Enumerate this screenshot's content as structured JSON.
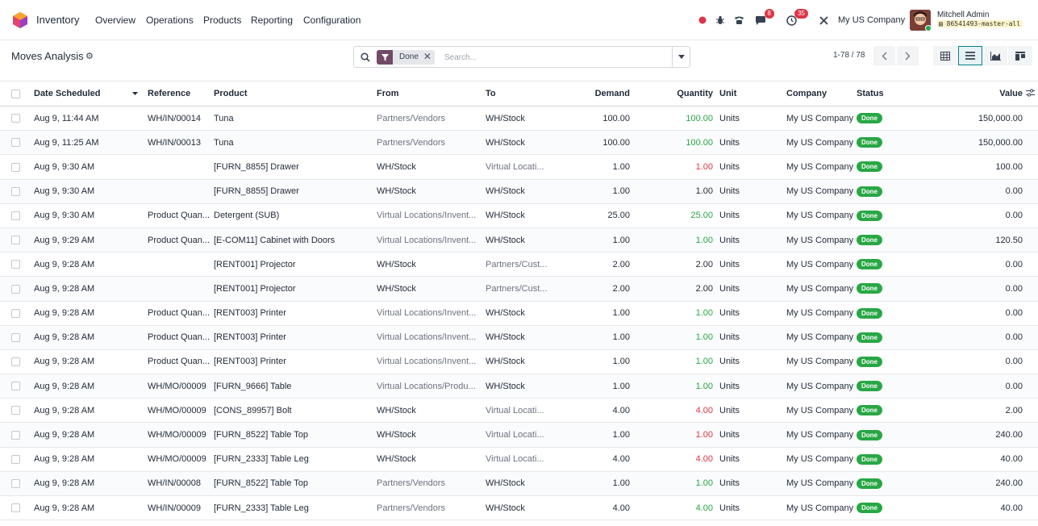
{
  "navbar": {
    "app_name": "Inventory",
    "menu": [
      "Overview",
      "Operations",
      "Products",
      "Reporting",
      "Configuration"
    ],
    "messages_count": "8",
    "activities_count": "35",
    "company": "My US Company",
    "user_name": "Mitchell Admin",
    "db_name": "86541493-master-all"
  },
  "control_panel": {
    "title": "Moves Analysis",
    "facet_label": "Done",
    "search_placeholder": "Search...",
    "pager": "1-78 / 78"
  },
  "table": {
    "columns": {
      "date": "Date Scheduled",
      "reference": "Reference",
      "product": "Product",
      "from": "From",
      "to": "To",
      "demand": "Demand",
      "quantity": "Quantity",
      "unit": "Unit",
      "company": "Company",
      "status": "Status",
      "value": "Value"
    },
    "rows": [
      {
        "date": "Aug 9, 11:44 AM",
        "reference": "WH/IN/00014",
        "product": "Tuna",
        "from": "Partners/Vendors",
        "to": "WH/Stock",
        "demand": "100.00",
        "quantity": "100.00",
        "qty_color": "green",
        "unit": "Units",
        "company": "My US Company",
        "status": "Done",
        "value": "150,000.00"
      },
      {
        "date": "Aug 9, 11:25 AM",
        "reference": "WH/IN/00013",
        "product": "Tuna",
        "from": "Partners/Vendors",
        "to": "WH/Stock",
        "demand": "100.00",
        "quantity": "100.00",
        "qty_color": "green",
        "unit": "Units",
        "company": "My US Company",
        "status": "Done",
        "value": "150,000.00"
      },
      {
        "date": "Aug 9, 9:30 AM",
        "reference": "",
        "product": "[FURN_8855] Drawer",
        "from": "WH/Stock",
        "to": "Virtual Locati...",
        "demand": "1.00",
        "quantity": "1.00",
        "qty_color": "red",
        "unit": "Units",
        "company": "My US Company",
        "status": "Done",
        "value": "100.00"
      },
      {
        "date": "Aug 9, 9:30 AM",
        "reference": "",
        "product": "[FURN_8855] Drawer",
        "from": "WH/Stock",
        "to": "WH/Stock",
        "demand": "1.00",
        "quantity": "1.00",
        "qty_color": "normal",
        "unit": "Units",
        "company": "My US Company",
        "status": "Done",
        "value": "0.00"
      },
      {
        "date": "Aug 9, 9:30 AM",
        "reference": "Product Quan...",
        "product": "Detergent (SUB)",
        "from": "Virtual Locations/Invent...",
        "to": "WH/Stock",
        "demand": "25.00",
        "quantity": "25.00",
        "qty_color": "green",
        "unit": "Units",
        "company": "My US Company",
        "status": "Done",
        "value": "0.00"
      },
      {
        "date": "Aug 9, 9:29 AM",
        "reference": "Product Quan...",
        "product": "[E-COM11] Cabinet with Doors",
        "from": "Virtual Locations/Invent...",
        "to": "WH/Stock",
        "demand": "1.00",
        "quantity": "1.00",
        "qty_color": "green",
        "unit": "Units",
        "company": "My US Company",
        "status": "Done",
        "value": "120.50"
      },
      {
        "date": "Aug 9, 9:28 AM",
        "reference": "",
        "product": "[RENT001] Projector",
        "from": "WH/Stock",
        "to": "Partners/Cust...",
        "demand": "2.00",
        "quantity": "2.00",
        "qty_color": "normal",
        "unit": "Units",
        "company": "My US Company",
        "status": "Done",
        "value": "0.00"
      },
      {
        "date": "Aug 9, 9:28 AM",
        "reference": "",
        "product": "[RENT001] Projector",
        "from": "WH/Stock",
        "to": "Partners/Cust...",
        "demand": "2.00",
        "quantity": "2.00",
        "qty_color": "normal",
        "unit": "Units",
        "company": "My US Company",
        "status": "Done",
        "value": "0.00"
      },
      {
        "date": "Aug 9, 9:28 AM",
        "reference": "Product Quan...",
        "product": "[RENT003] Printer",
        "from": "Virtual Locations/Invent...",
        "to": "WH/Stock",
        "demand": "1.00",
        "quantity": "1.00",
        "qty_color": "green",
        "unit": "Units",
        "company": "My US Company",
        "status": "Done",
        "value": "0.00"
      },
      {
        "date": "Aug 9, 9:28 AM",
        "reference": "Product Quan...",
        "product": "[RENT003] Printer",
        "from": "Virtual Locations/Invent...",
        "to": "WH/Stock",
        "demand": "1.00",
        "quantity": "1.00",
        "qty_color": "green",
        "unit": "Units",
        "company": "My US Company",
        "status": "Done",
        "value": "0.00"
      },
      {
        "date": "Aug 9, 9:28 AM",
        "reference": "Product Quan...",
        "product": "[RENT003] Printer",
        "from": "Virtual Locations/Invent...",
        "to": "WH/Stock",
        "demand": "1.00",
        "quantity": "1.00",
        "qty_color": "green",
        "unit": "Units",
        "company": "My US Company",
        "status": "Done",
        "value": "0.00"
      },
      {
        "date": "Aug 9, 9:28 AM",
        "reference": "WH/MO/00009",
        "product": "[FURN_9666] Table",
        "from": "Virtual Locations/Produ...",
        "to": "WH/Stock",
        "demand": "1.00",
        "quantity": "1.00",
        "qty_color": "green",
        "unit": "Units",
        "company": "My US Company",
        "status": "Done",
        "value": "0.00"
      },
      {
        "date": "Aug 9, 9:28 AM",
        "reference": "WH/MO/00009",
        "product": "[CONS_89957] Bolt",
        "from": "WH/Stock",
        "to": "Virtual Locati...",
        "demand": "4.00",
        "quantity": "4.00",
        "qty_color": "red",
        "unit": "Units",
        "company": "My US Company",
        "status": "Done",
        "value": "2.00"
      },
      {
        "date": "Aug 9, 9:28 AM",
        "reference": "WH/MO/00009",
        "product": "[FURN_8522] Table Top",
        "from": "WH/Stock",
        "to": "Virtual Locati...",
        "demand": "1.00",
        "quantity": "1.00",
        "qty_color": "red",
        "unit": "Units",
        "company": "My US Company",
        "status": "Done",
        "value": "240.00"
      },
      {
        "date": "Aug 9, 9:28 AM",
        "reference": "WH/MO/00009",
        "product": "[FURN_2333] Table Leg",
        "from": "WH/Stock",
        "to": "Virtual Locati...",
        "demand": "4.00",
        "quantity": "4.00",
        "qty_color": "red",
        "unit": "Units",
        "company": "My US Company",
        "status": "Done",
        "value": "40.00"
      },
      {
        "date": "Aug 9, 9:28 AM",
        "reference": "WH/IN/00008",
        "product": "[FURN_8522] Table Top",
        "from": "Partners/Vendors",
        "to": "WH/Stock",
        "demand": "1.00",
        "quantity": "1.00",
        "qty_color": "green",
        "unit": "Units",
        "company": "My US Company",
        "status": "Done",
        "value": "240.00"
      },
      {
        "date": "Aug 9, 9:28 AM",
        "reference": "WH/IN/00009",
        "product": "[FURN_2333] Table Leg",
        "from": "Partners/Vendors",
        "to": "WH/Stock",
        "demand": "4.00",
        "quantity": "4.00",
        "qty_color": "green",
        "unit": "Units",
        "company": "My US Company",
        "status": "Done",
        "value": "40.00"
      }
    ]
  }
}
